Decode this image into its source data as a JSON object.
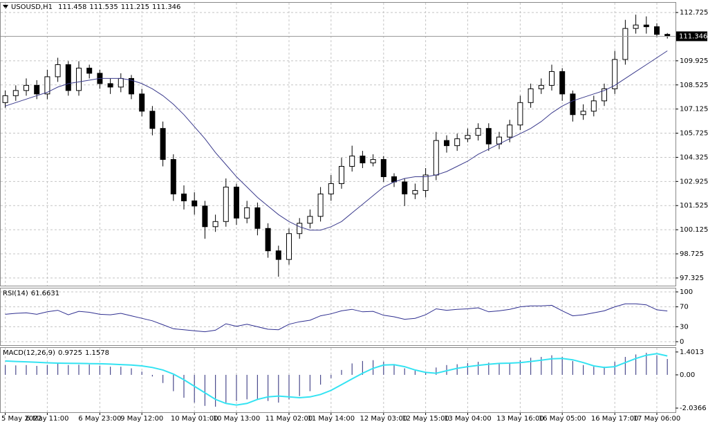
{
  "chart_data": [
    {
      "type": "candlestick",
      "title": "USOUSD,H1",
      "open": [
        107.5,
        107.9,
        108.2,
        108.5,
        108.0,
        109.0,
        109.7,
        108.2,
        109.5,
        109.2,
        108.6,
        108.4,
        108.9,
        108.0,
        107.0,
        106.0,
        104.2,
        102.2,
        101.8,
        101.5,
        100.3,
        100.6,
        102.6,
        100.8,
        101.4,
        100.2,
        98.9,
        98.4,
        99.9,
        100.5,
        100.9,
        102.2,
        102.8,
        103.8,
        104.4,
        104.0,
        104.2,
        103.2,
        102.9,
        102.2,
        102.4,
        103.3,
        105.3,
        105.0,
        105.4,
        105.6,
        106.0,
        105.1,
        105.5,
        106.2,
        107.5,
        108.3,
        108.5,
        109.3,
        108.0,
        106.8,
        107.0,
        107.6,
        108.3,
        110.0,
        111.8,
        112.0,
        111.9,
        111.458
      ],
      "high": [
        108.2,
        108.5,
        108.9,
        108.8,
        109.4,
        110.1,
        109.9,
        109.9,
        109.7,
        109.4,
        108.9,
        109.2,
        109.1,
        108.3,
        107.3,
        106.4,
        104.5,
        102.7,
        102.3,
        101.8,
        101.0,
        103.1,
        102.8,
        101.8,
        101.7,
        100.5,
        99.2,
        100.2,
        100.8,
        101.3,
        102.6,
        103.3,
        104.3,
        105.0,
        104.7,
        104.5,
        104.4,
        103.4,
        103.1,
        102.8,
        103.7,
        105.8,
        105.6,
        105.7,
        106.0,
        106.3,
        106.3,
        105.8,
        106.5,
        107.9,
        108.6,
        108.9,
        109.7,
        109.5,
        108.2,
        107.4,
        107.9,
        108.6,
        110.5,
        112.3,
        112.6,
        112.5,
        112.1,
        111.535
      ],
      "low": [
        107.2,
        107.6,
        107.9,
        107.7,
        107.7,
        108.7,
        107.9,
        107.9,
        108.9,
        108.3,
        108.0,
        108.1,
        107.7,
        106.7,
        105.6,
        103.8,
        101.8,
        101.3,
        101.0,
        99.6,
        100.0,
        100.3,
        100.4,
        100.5,
        99.8,
        98.5,
        97.4,
        98.1,
        99.6,
        100.2,
        100.6,
        101.8,
        102.5,
        103.5,
        103.7,
        103.8,
        102.9,
        102.6,
        101.5,
        101.9,
        102.0,
        103.0,
        104.6,
        104.7,
        105.2,
        105.3,
        104.7,
        104.8,
        105.2,
        105.9,
        107.2,
        108.0,
        108.2,
        107.6,
        106.4,
        106.5,
        106.7,
        107.3,
        108.0,
        109.7,
        111.5,
        111.5,
        111.3,
        111.215
      ],
      "close": [
        107.9,
        108.2,
        108.5,
        108.0,
        109.0,
        109.7,
        108.2,
        109.5,
        109.2,
        108.6,
        108.4,
        108.9,
        108.0,
        107.0,
        106.0,
        104.2,
        102.2,
        101.8,
        101.5,
        100.3,
        100.6,
        102.6,
        100.8,
        101.4,
        100.2,
        98.9,
        98.4,
        99.9,
        100.5,
        100.9,
        102.2,
        102.8,
        103.8,
        104.4,
        104.0,
        104.2,
        103.2,
        102.9,
        102.2,
        102.4,
        103.3,
        105.3,
        105.0,
        105.4,
        105.6,
        106.0,
        105.1,
        105.5,
        106.2,
        107.5,
        108.3,
        108.5,
        109.3,
        108.0,
        106.8,
        107.0,
        107.6,
        108.3,
        110.0,
        111.8,
        112.0,
        111.9,
        111.458,
        111.346
      ],
      "ma": {
        "color": "#3a3a8c",
        "values": [
          107.3,
          107.5,
          107.7,
          107.9,
          108.1,
          108.4,
          108.6,
          108.7,
          108.8,
          108.9,
          108.9,
          108.9,
          108.8,
          108.6,
          108.3,
          107.9,
          107.4,
          106.8,
          106.1,
          105.4,
          104.6,
          103.9,
          103.2,
          102.6,
          102.0,
          101.5,
          101.0,
          100.6,
          100.3,
          100.1,
          100.1,
          100.3,
          100.6,
          101.1,
          101.6,
          102.1,
          102.6,
          102.9,
          103.1,
          103.2,
          103.2,
          103.3,
          103.5,
          103.8,
          104.1,
          104.5,
          104.8,
          105.1,
          105.4,
          105.7,
          106.0,
          106.4,
          106.9,
          107.3,
          107.6,
          107.8,
          108.0,
          108.2,
          108.5,
          108.9,
          109.3,
          109.7,
          110.1,
          110.5
        ]
      },
      "ylim": [
        96.88,
        113.29
      ],
      "yticks": [
        97.325,
        98.725,
        100.125,
        101.525,
        102.925,
        104.325,
        105.725,
        107.125,
        108.525,
        109.925,
        112.725
      ],
      "grid": true
    },
    {
      "type": "line",
      "title": "RSI(14)",
      "color": "#2d2d8f",
      "values": [
        55,
        57,
        58,
        55,
        60,
        63,
        54,
        61,
        59,
        55,
        54,
        57,
        52,
        47,
        42,
        34,
        26,
        24,
        22,
        20,
        23,
        36,
        31,
        35,
        30,
        25,
        24,
        35,
        40,
        43,
        52,
        56,
        62,
        65,
        60,
        61,
        53,
        50,
        45,
        47,
        54,
        66,
        63,
        65,
        66,
        68,
        60,
        62,
        65,
        70,
        72,
        72,
        73,
        62,
        52,
        54,
        58,
        62,
        70,
        76,
        76,
        74,
        64,
        61.6631
      ],
      "ylim": [
        0,
        100
      ],
      "yticks": [
        0,
        30,
        70,
        100
      ],
      "grid": true
    },
    {
      "type": "macd",
      "title": "MACD(12,26,9)",
      "histogram": {
        "color": "#4a4a8c",
        "values": [
          0.6,
          0.58,
          0.6,
          0.55,
          0.6,
          0.7,
          0.6,
          0.62,
          0.63,
          0.55,
          0.5,
          0.5,
          0.4,
          0.2,
          -0.1,
          -0.5,
          -1.0,
          -1.4,
          -1.7,
          -1.9,
          -1.95,
          -1.7,
          -1.6,
          -1.5,
          -1.5,
          -1.6,
          -1.7,
          -1.5,
          -1.3,
          -1.0,
          -0.6,
          -0.2,
          0.3,
          0.7,
          0.85,
          0.9,
          0.8,
          0.6,
          0.4,
          0.25,
          0.2,
          0.45,
          0.6,
          0.65,
          0.72,
          0.8,
          0.75,
          0.72,
          0.75,
          0.9,
          1.05,
          1.1,
          1.2,
          1.1,
          0.85,
          0.6,
          0.5,
          0.5,
          0.8,
          1.1,
          1.25,
          1.35,
          1.2,
          0.9725
        ]
      },
      "signal": {
        "color": "#33e3f2",
        "values": [
          0.85,
          0.82,
          0.8,
          0.77,
          0.74,
          0.72,
          0.71,
          0.7,
          0.69,
          0.68,
          0.66,
          0.63,
          0.6,
          0.55,
          0.45,
          0.3,
          0.05,
          -0.3,
          -0.7,
          -1.1,
          -1.5,
          -1.75,
          -1.85,
          -1.75,
          -1.5,
          -1.35,
          -1.3,
          -1.35,
          -1.4,
          -1.35,
          -1.2,
          -0.95,
          -0.6,
          -0.25,
          0.1,
          0.4,
          0.6,
          0.62,
          0.5,
          0.3,
          0.15,
          0.1,
          0.25,
          0.4,
          0.5,
          0.58,
          0.65,
          0.7,
          0.72,
          0.75,
          0.82,
          0.9,
          0.98,
          1.0,
          0.92,
          0.75,
          0.55,
          0.45,
          0.5,
          0.75,
          1.0,
          1.2,
          1.3,
          1.1578
        ]
      },
      "ylim": [
        -2.29,
        1.65
      ],
      "yticks": [
        -2.0366,
        {
          "value": 0,
          "label": "0.00"
        },
        1.4013
      ],
      "xticks": [
        {
          "value": 0,
          "label": "5 May 2022"
        },
        {
          "value": 4,
          "label": "6 May 11:00"
        },
        {
          "value": 9,
          "label": "6 May 23:00"
        },
        {
          "value": 13,
          "label": "9 May 12:00"
        },
        {
          "value": 18,
          "label": "10 May 01:00"
        },
        {
          "value": 22,
          "label": "10 May 13:00"
        },
        {
          "value": 27,
          "label": "11 May 02:00"
        },
        {
          "value": 31,
          "label": "11 May 14:00"
        },
        {
          "value": 36,
          "label": "12 May 03:00"
        },
        {
          "value": 40,
          "label": "12 May 15:00"
        },
        {
          "value": 44,
          "label": "13 May 04:00"
        },
        {
          "value": 49,
          "label": "13 May 16:00"
        },
        {
          "value": 53,
          "label": "16 May 05:00"
        },
        {
          "value": 58,
          "label": "16 May 17:00"
        },
        {
          "value": 62,
          "label": "17 May 06:00"
        }
      ]
    }
  ]
}
